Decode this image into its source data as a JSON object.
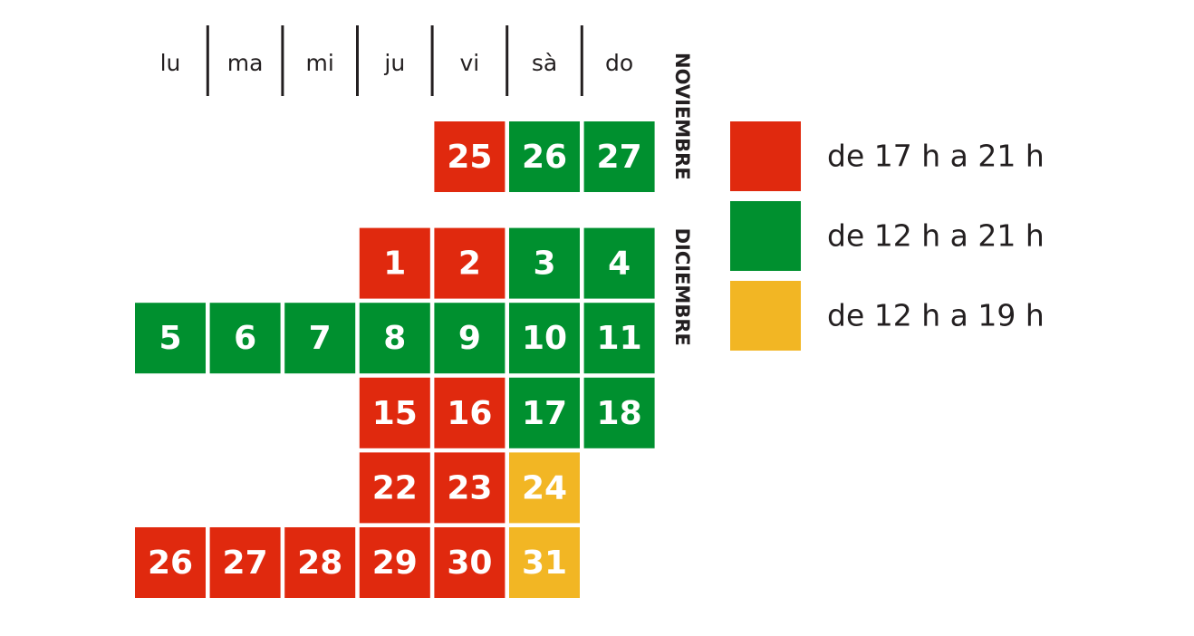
{
  "weekdays": [
    "lu",
    "ma",
    "mi",
    "ju",
    "vi",
    "sà",
    "do"
  ],
  "months": [
    {
      "label": "NOVIEMBRE",
      "weeks": [
        [
          null,
          null,
          null,
          null,
          {
            "day": 25,
            "color": "#e0290e"
          },
          {
            "day": 26,
            "color": "#00902f"
          },
          {
            "day": 27,
            "color": "#00902f"
          }
        ]
      ]
    },
    {
      "label": "DICIEMBRE",
      "weeks": [
        [
          null,
          null,
          null,
          {
            "day": 1,
            "color": "#e0290e"
          },
          {
            "day": 2,
            "color": "#e0290e"
          },
          {
            "day": 3,
            "color": "#00902f"
          },
          {
            "day": 4,
            "color": "#00902f"
          }
        ],
        [
          {
            "day": 5,
            "color": "#00902f"
          },
          {
            "day": 6,
            "color": "#00902f"
          },
          {
            "day": 7,
            "color": "#00902f"
          },
          {
            "day": 8,
            "color": "#00902f"
          },
          {
            "day": 9,
            "color": "#00902f"
          },
          {
            "day": 10,
            "color": "#00902f"
          },
          {
            "day": 11,
            "color": "#00902f"
          }
        ],
        [
          null,
          null,
          null,
          {
            "day": 15,
            "color": "#e0290e"
          },
          {
            "day": 16,
            "color": "#e0290e"
          },
          {
            "day": 17,
            "color": "#00902f"
          },
          {
            "day": 18,
            "color": "#00902f"
          }
        ],
        [
          null,
          null,
          null,
          {
            "day": 22,
            "color": "#e0290e"
          },
          {
            "day": 23,
            "color": "#e0290e"
          },
          {
            "day": 24,
            "color": "#f2b624"
          },
          null
        ],
        [
          {
            "day": 26,
            "color": "#e0290e"
          },
          {
            "day": 27,
            "color": "#e0290e"
          },
          {
            "day": 28,
            "color": "#e0290e"
          },
          {
            "day": 29,
            "color": "#e0290e"
          },
          {
            "day": 30,
            "color": "#e0290e"
          },
          {
            "day": 31,
            "color": "#f2b624"
          },
          null
        ]
      ]
    }
  ],
  "legend": [
    {
      "label": "de 17 h a 21 h",
      "color": "#e0290e"
    },
    {
      "label": "de 12 h a 21 h",
      "color": "#00902f"
    },
    {
      "label": "de 12 h a 19 h",
      "color": "#f2b624"
    }
  ]
}
